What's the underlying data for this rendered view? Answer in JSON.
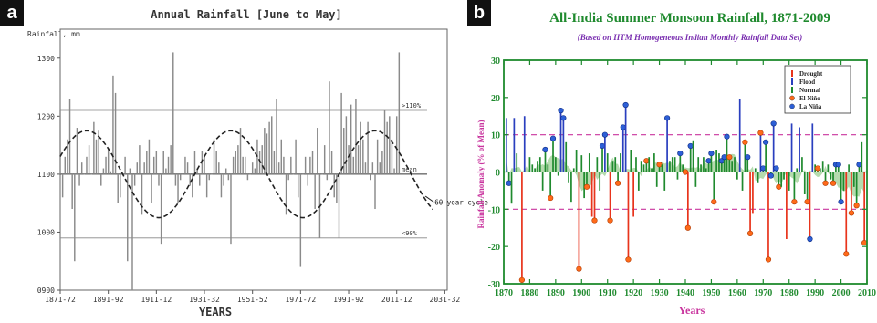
{
  "panels": [
    {
      "letter": "a",
      "chart_data": {
        "type": "bar",
        "title": "Annual Rainfall [June to May]",
        "ylabel": "Rainfall, mm",
        "xlabel": "YEARS",
        "baseline": 1100,
        "ylim": [
          900,
          1350
        ],
        "yticks": [
          900,
          1000,
          1100,
          1200,
          1300
        ],
        "ytick_labels": [
          "0900",
          "1000",
          "1100",
          "1200",
          "1300"
        ],
        "xtick_years": [
          1871,
          1891,
          1911,
          1931,
          1951,
          1971,
          1991,
          2011,
          2031
        ],
        "xtick_labels": [
          "1871-72",
          "1891-92",
          "1911-12",
          "1931-32",
          "1951-52",
          "1971-72",
          "1991-92",
          "2011-12",
          "2031-32"
        ],
        "xlim": [
          1871,
          2032
        ],
        "reference_lines": [
          {
            "label": ">110%",
            "value": 1210
          },
          {
            "label": "mean",
            "value": 1100
          },
          {
            "label": "<90%",
            "value": 990
          }
        ],
        "cycle_label": "60-year cycle",
        "cycle": {
          "mean": 1100,
          "amplitude": 75,
          "period_years": 60,
          "peak_year": 1882,
          "x_range": [
            1871,
            2026
          ]
        },
        "x": [
          1871,
          1872,
          1873,
          1874,
          1875,
          1876,
          1877,
          1878,
          1879,
          1880,
          1881,
          1882,
          1883,
          1884,
          1885,
          1886,
          1887,
          1888,
          1889,
          1890,
          1891,
          1892,
          1893,
          1894,
          1895,
          1896,
          1897,
          1898,
          1899,
          1900,
          1901,
          1902,
          1903,
          1904,
          1905,
          1906,
          1907,
          1908,
          1909,
          1910,
          1911,
          1912,
          1913,
          1914,
          1915,
          1916,
          1917,
          1918,
          1919,
          1920,
          1921,
          1922,
          1923,
          1924,
          1925,
          1926,
          1927,
          1928,
          1929,
          1930,
          1931,
          1932,
          1933,
          1934,
          1935,
          1936,
          1937,
          1938,
          1939,
          1940,
          1941,
          1942,
          1943,
          1944,
          1945,
          1946,
          1947,
          1948,
          1949,
          1950,
          1951,
          1952,
          1953,
          1954,
          1955,
          1956,
          1957,
          1958,
          1959,
          1960,
          1961,
          1962,
          1963,
          1964,
          1965,
          1966,
          1967,
          1968,
          1969,
          1970,
          1971,
          1972,
          1973,
          1974,
          1975,
          1976,
          1977,
          1978,
          1979,
          1980,
          1981,
          1982,
          1983,
          1984,
          1985,
          1986,
          1987,
          1988,
          1989,
          1990,
          1991,
          1992,
          1993,
          1994,
          1995,
          1996,
          1997,
          1998,
          1999,
          2000,
          2001,
          2002,
          2003,
          2004,
          2005,
          2006,
          2007,
          2008,
          2009,
          2010,
          2011,
          2012
        ],
        "values": [
          1210,
          1060,
          1130,
          1160,
          1230,
          1040,
          950,
          1180,
          1080,
          1120,
          1100,
          1130,
          1150,
          1100,
          1190,
          1160,
          1175,
          1080,
          1110,
          1130,
          1145,
          1105,
          1270,
          1240,
          1050,
          1060,
          1100,
          1130,
          950,
          1110,
          900,
          1080,
          1120,
          1150,
          1030,
          1120,
          1140,
          1160,
          1050,
          1130,
          1140,
          1080,
          980,
          1140,
          1110,
          1130,
          1150,
          1310,
          1080,
          1050,
          1090,
          1100,
          1130,
          1120,
          1080,
          1060,
          1140,
          1110,
          1080,
          1140,
          1130,
          1060,
          1090,
          1100,
          1160,
          1140,
          1120,
          1060,
          1080,
          1110,
          1090,
          980,
          1130,
          1140,
          1150,
          1180,
          1130,
          1130,
          1090,
          1100,
          1120,
          1110,
          1160,
          1140,
          1150,
          1180,
          1170,
          1190,
          1200,
          1140,
          1230,
          1120,
          1160,
          1130,
          1030,
          1090,
          1130,
          1100,
          1160,
          1060,
          940,
          1100,
          1130,
          1080,
          1130,
          1140,
          1040,
          1180,
          990,
          1100,
          1150,
          1090,
          1260,
          1140,
          1060,
          1050,
          990,
          1240,
          1180,
          1200,
          1150,
          1220,
          1130,
          1230,
          1150,
          1190,
          1160,
          1120,
          1190,
          1090,
          1120,
          1040,
          1160,
          1120,
          1140,
          1210,
          1190,
          1200,
          1160,
          1110,
          1200,
          1310
        ]
      }
    },
    {
      "letter": "b",
      "chart_data": {
        "type": "bar",
        "title": "All-India Summer Monsoon Rainfall, 1871-2009",
        "subtitle": "(Based on IITM Homogeneous Indian Monthly Rainfall Data Set)",
        "xlabel": "Years",
        "ylabel": "Rainfall Anomaly (% of Mean)",
        "xlim": [
          1870,
          2010
        ],
        "ylim": [
          -30,
          30
        ],
        "xticks": [
          1870,
          1880,
          1890,
          1900,
          1910,
          1920,
          1930,
          1940,
          1950,
          1960,
          1970,
          1980,
          1990,
          2000,
          2010
        ],
        "yticks": [
          -30,
          -20,
          -10,
          0,
          10,
          20,
          30
        ],
        "threshold_lines": [
          10,
          -10
        ],
        "legend": {
          "position": "top-right",
          "entries": [
            {
              "label": "Drought",
              "color": "#e8341c",
              "marker": "bar"
            },
            {
              "label": "Flood",
              "color": "#2a3fbf",
              "marker": "bar"
            },
            {
              "label": "Normal",
              "color": "#1f8a2e",
              "marker": "bar"
            },
            {
              "label": "El Niño",
              "color": "#ff6a1a",
              "marker": "circle"
            },
            {
              "label": "La Niña",
              "color": "#2d5fd6",
              "marker": "circle"
            }
          ]
        },
        "series_colors": {
          "drought": "#e8341c",
          "flood": "#2a3fbf",
          "normal": "#1f8a2e",
          "el_nino": "#ff6a1a",
          "la_nina": "#2d5fd6",
          "smooth_fill": "#a8d5a0"
        },
        "x": [
          1871,
          1872,
          1873,
          1874,
          1875,
          1876,
          1877,
          1878,
          1879,
          1880,
          1881,
          1882,
          1883,
          1884,
          1885,
          1886,
          1887,
          1888,
          1889,
          1890,
          1891,
          1892,
          1893,
          1894,
          1895,
          1896,
          1897,
          1898,
          1899,
          1900,
          1901,
          1902,
          1903,
          1904,
          1905,
          1906,
          1907,
          1908,
          1909,
          1910,
          1911,
          1912,
          1913,
          1914,
          1915,
          1916,
          1917,
          1918,
          1919,
          1920,
          1921,
          1922,
          1923,
          1924,
          1925,
          1926,
          1927,
          1928,
          1929,
          1930,
          1931,
          1932,
          1933,
          1934,
          1935,
          1936,
          1937,
          1938,
          1939,
          1940,
          1941,
          1942,
          1943,
          1944,
          1945,
          1946,
          1947,
          1948,
          1949,
          1950,
          1951,
          1952,
          1953,
          1954,
          1955,
          1956,
          1957,
          1958,
          1959,
          1960,
          1961,
          1962,
          1963,
          1964,
          1965,
          1966,
          1967,
          1968,
          1969,
          1970,
          1971,
          1972,
          1973,
          1974,
          1975,
          1976,
          1977,
          1978,
          1979,
          1980,
          1981,
          1982,
          1983,
          1984,
          1985,
          1986,
          1987,
          1988,
          1989,
          1990,
          1991,
          1992,
          1993,
          1994,
          1995,
          1996,
          1997,
          1998,
          1999,
          2000,
          2001,
          2002,
          2003,
          2004,
          2005,
          2006,
          2007,
          2008,
          2009
        ],
        "values": [
          14.5,
          -3,
          -8.5,
          14.5,
          5,
          0,
          -29,
          15,
          0,
          4,
          2,
          1,
          3,
          4,
          -5,
          6,
          2,
          -7,
          9,
          4,
          -1,
          16.5,
          14.5,
          8,
          -3,
          -8,
          1,
          6,
          -26,
          4.5,
          -7,
          -4,
          5,
          -12,
          -13,
          4,
          -5,
          7,
          10,
          5,
          -13,
          3,
          4,
          -3,
          5,
          12,
          18,
          -23.5,
          6,
          -12,
          4,
          -5,
          3,
          2,
          3,
          4,
          1,
          5,
          -4,
          2,
          2,
          -5,
          14.5,
          3,
          4,
          4,
          -2,
          5,
          2,
          0,
          -15,
          7,
          8.5,
          -4,
          4,
          2,
          4,
          1,
          3,
          5,
          -8,
          6,
          5,
          3,
          4,
          9.5,
          4,
          3,
          4,
          -2,
          19.5,
          -5,
          8,
          4,
          -16.5,
          -11,
          1,
          -3,
          10.5,
          1,
          8,
          -23.5,
          -1,
          13,
          1,
          -4,
          -4,
          -2,
          -18,
          -5,
          13,
          -8,
          1,
          12,
          4,
          -6,
          -8,
          -18,
          13,
          2,
          1,
          1,
          3,
          -3,
          2,
          -2,
          -3,
          2,
          2,
          -8,
          -5,
          -22,
          2,
          -11,
          -4,
          -9,
          2,
          8,
          -19
        ],
        "el_nino_years": [
          1877,
          1888,
          1899,
          1902,
          1905,
          1911,
          1914,
          1918,
          1925,
          1930,
          1940,
          1941,
          1951,
          1957,
          1963,
          1965,
          1969,
          1972,
          1976,
          1982,
          1987,
          1991,
          1994,
          1997,
          2002,
          2004,
          2006,
          2009
        ],
        "la_nina_years": [
          1872,
          1886,
          1889,
          1892,
          1893,
          1908,
          1909,
          1916,
          1917,
          1933,
          1938,
          1942,
          1949,
          1950,
          1954,
          1955,
          1956,
          1964,
          1970,
          1971,
          1973,
          1974,
          1975,
          1988,
          1998,
          1999,
          2000,
          2007
        ]
      }
    }
  ]
}
